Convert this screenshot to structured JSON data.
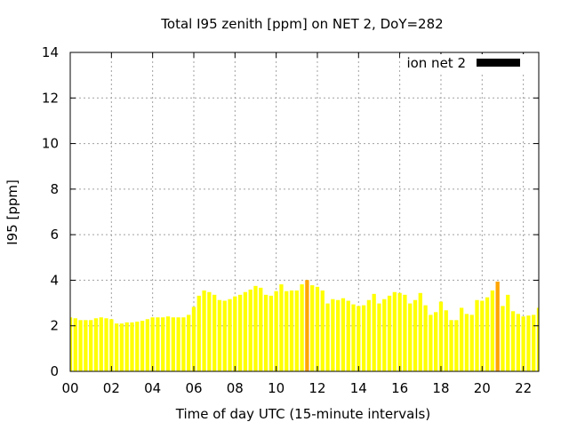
{
  "chart_data": {
    "type": "bar",
    "title": "Total I95 zenith [ppm] on NET 2, DoY=282",
    "xlabel": "Time of day UTC (15-minute intervals)",
    "ylabel": "I95 [ppm]",
    "xlim": [
      0,
      22.75
    ],
    "ylim": [
      0,
      14
    ],
    "x_ticks": [
      0,
      2,
      4,
      6,
      8,
      10,
      12,
      14,
      16,
      18,
      20,
      22
    ],
    "x_tick_labels": [
      "00",
      "02",
      "04",
      "06",
      "08",
      "10",
      "12",
      "14",
      "16",
      "18",
      "20",
      "22"
    ],
    "y_ticks": [
      0,
      2,
      4,
      6,
      8,
      10,
      12,
      14
    ],
    "y_tick_labels": [
      "0",
      "2",
      "4",
      "6",
      "8",
      "10",
      "12",
      "14"
    ],
    "grid": true,
    "legend_position": "top-right",
    "interval_hours": 0.25,
    "series": [
      {
        "name": "ion net 2",
        "legend_color": "#000000",
        "color": "#FFFF00",
        "highlight_color": "#FFA500",
        "highlighted_indices": [
          46,
          83
        ],
        "values": [
          2.37,
          2.33,
          2.25,
          2.25,
          2.25,
          2.33,
          2.37,
          2.33,
          2.29,
          2.1,
          2.1,
          2.15,
          2.15,
          2.18,
          2.22,
          2.29,
          2.37,
          2.37,
          2.37,
          2.41,
          2.37,
          2.37,
          2.37,
          2.48,
          2.83,
          3.32,
          3.55,
          3.48,
          3.36,
          3.13,
          3.1,
          3.17,
          3.29,
          3.36,
          3.48,
          3.59,
          3.75,
          3.67,
          3.36,
          3.32,
          3.52,
          3.82,
          3.52,
          3.55,
          3.55,
          3.82,
          4.01,
          3.78,
          3.71,
          3.55,
          2.98,
          3.17,
          3.13,
          3.21,
          3.1,
          2.94,
          2.87,
          2.9,
          3.13,
          3.4,
          2.98,
          3.17,
          3.32,
          3.48,
          3.44,
          3.36,
          2.98,
          3.13,
          3.44,
          2.9,
          2.48,
          2.6,
          3.06,
          2.68,
          2.25,
          2.25,
          2.79,
          2.52,
          2.48,
          3.13,
          3.1,
          3.25,
          3.55,
          3.94,
          2.87,
          3.36,
          2.64,
          2.52,
          2.41,
          2.45,
          2.48,
          2.79
        ]
      }
    ]
  }
}
